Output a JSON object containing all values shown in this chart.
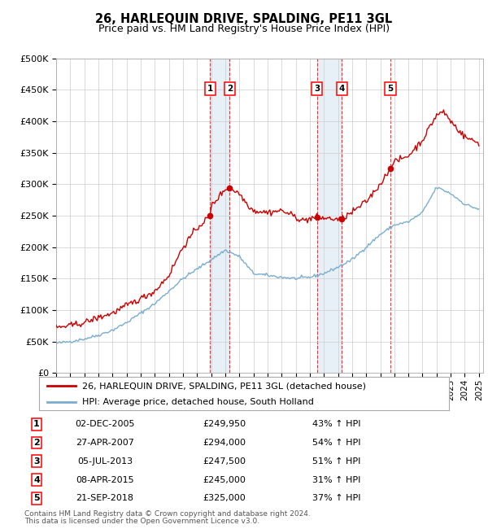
{
  "title": "26, HARLEQUIN DRIVE, SPALDING, PE11 3GL",
  "subtitle": "Price paid vs. HM Land Registry's House Price Index (HPI)",
  "ylim": [
    0,
    500000
  ],
  "yticks": [
    0,
    50000,
    100000,
    150000,
    200000,
    250000,
    300000,
    350000,
    400000,
    450000,
    500000
  ],
  "xlim_start": 1995,
  "xlim_end": 2025,
  "legend_label_red": "26, HARLEQUIN DRIVE, SPALDING, PE11 3GL (detached house)",
  "legend_label_blue": "HPI: Average price, detached house, South Holland",
  "red_color": "#cc0000",
  "blue_color": "#7aadcf",
  "shade_color": "#ddeeff",
  "transactions": [
    {
      "num": 1,
      "date": "02-DEC-2005",
      "year": 2005.92,
      "price": 249950,
      "pct": "43%",
      "dir": "↑"
    },
    {
      "num": 2,
      "date": "27-APR-2007",
      "year": 2007.32,
      "price": 294000,
      "pct": "54%",
      "dir": "↑"
    },
    {
      "num": 3,
      "date": "05-JUL-2013",
      "year": 2013.51,
      "price": 247500,
      "pct": "51%",
      "dir": "↑"
    },
    {
      "num": 4,
      "date": "08-APR-2015",
      "year": 2015.27,
      "price": 245000,
      "pct": "31%",
      "dir": "↑"
    },
    {
      "num": 5,
      "date": "21-SEP-2018",
      "year": 2018.72,
      "price": 325000,
      "pct": "37%",
      "dir": "↑"
    }
  ],
  "footer_line1": "Contains HM Land Registry data © Crown copyright and database right 2024.",
  "footer_line2": "This data is licensed under the Open Government Licence v3.0.",
  "background_color": "#ffffff",
  "plot_bg_color": "#ffffff"
}
